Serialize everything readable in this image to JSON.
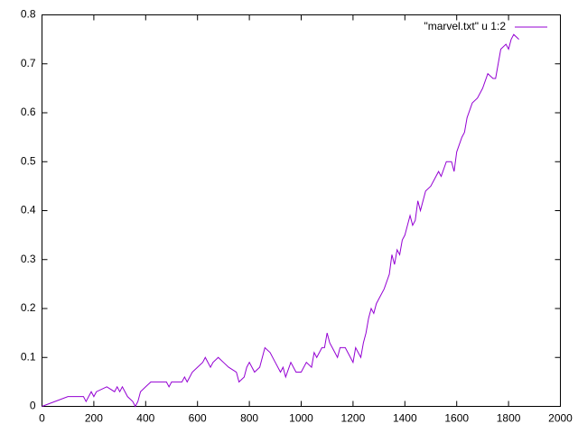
{
  "chart_data": {
    "type": "line",
    "series": [
      {
        "name": "\"marvel.txt\" u 1:2",
        "color": "#9400d3",
        "x": [
          0,
          100,
          160,
          170,
          180,
          190,
          200,
          210,
          250,
          280,
          290,
          300,
          310,
          330,
          350,
          360,
          370,
          380,
          400,
          420,
          480,
          490,
          500,
          540,
          550,
          560,
          580,
          600,
          620,
          630,
          650,
          660,
          680,
          700,
          720,
          750,
          760,
          780,
          790,
          800,
          820,
          840,
          855,
          860,
          880,
          900,
          920,
          930,
          940,
          960,
          980,
          1000,
          1020,
          1040,
          1050,
          1060,
          1080,
          1090,
          1100,
          1110,
          1120,
          1140,
          1150,
          1170,
          1190,
          1200,
          1210,
          1230,
          1240,
          1250,
          1260,
          1270,
          1280,
          1290,
          1300,
          1320,
          1340,
          1350,
          1360,
          1370,
          1380,
          1390,
          1400,
          1420,
          1430,
          1440,
          1450,
          1460,
          1480,
          1500,
          1520,
          1530,
          1540,
          1560,
          1580,
          1590,
          1600,
          1620,
          1630,
          1640,
          1660,
          1680,
          1700,
          1720,
          1740,
          1750,
          1760,
          1770,
          1790,
          1800,
          1810,
          1820,
          1840
        ],
        "values": [
          0,
          0.02,
          0.02,
          0.01,
          0.02,
          0.03,
          0.02,
          0.03,
          0.04,
          0.03,
          0.04,
          0.03,
          0.04,
          0.02,
          0.01,
          0,
          0.01,
          0.03,
          0.04,
          0.05,
          0.05,
          0.04,
          0.05,
          0.05,
          0.06,
          0.05,
          0.07,
          0.08,
          0.09,
          0.1,
          0.08,
          0.09,
          0.1,
          0.09,
          0.08,
          0.07,
          0.05,
          0.06,
          0.08,
          0.09,
          0.07,
          0.08,
          0.11,
          0.12,
          0.11,
          0.09,
          0.07,
          0.08,
          0.06,
          0.09,
          0.07,
          0.07,
          0.09,
          0.08,
          0.11,
          0.1,
          0.12,
          0.12,
          0.15,
          0.13,
          0.12,
          0.1,
          0.12,
          0.12,
          0.1,
          0.09,
          0.12,
          0.1,
          0.13,
          0.15,
          0.18,
          0.2,
          0.19,
          0.21,
          0.22,
          0.24,
          0.27,
          0.31,
          0.29,
          0.32,
          0.31,
          0.34,
          0.35,
          0.39,
          0.37,
          0.38,
          0.42,
          0.4,
          0.44,
          0.45,
          0.47,
          0.48,
          0.47,
          0.5,
          0.5,
          0.48,
          0.52,
          0.55,
          0.56,
          0.59,
          0.62,
          0.63,
          0.65,
          0.68,
          0.67,
          0.67,
          0.7,
          0.73,
          0.74,
          0.73,
          0.75,
          0.76,
          0.75
        ]
      }
    ],
    "xlim": [
      0,
      2000
    ],
    "xticks": [
      0,
      200,
      400,
      600,
      800,
      1000,
      1200,
      1400,
      1600,
      1800,
      2000
    ],
    "ylim": [
      0,
      0.8
    ],
    "yticks": [
      0,
      0.1,
      0.2,
      0.3,
      0.4,
      0.5,
      0.6,
      0.7,
      0.8
    ],
    "legend": "top-right"
  }
}
